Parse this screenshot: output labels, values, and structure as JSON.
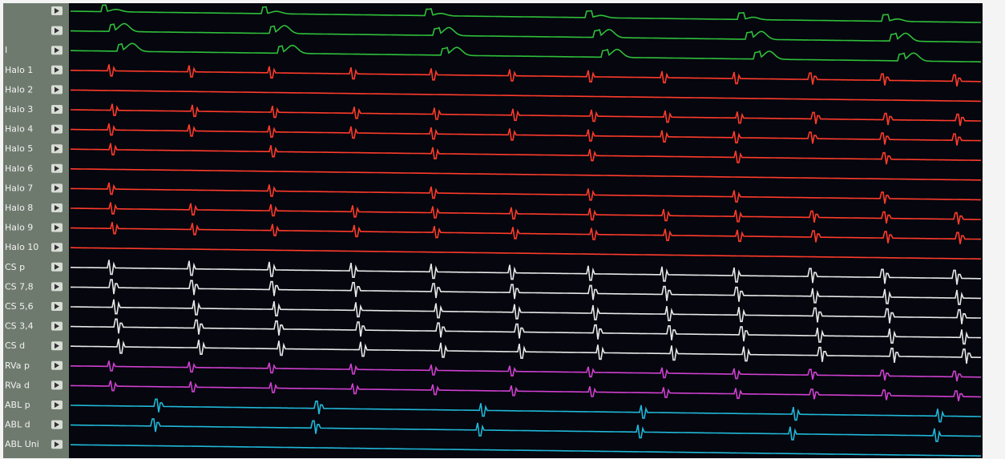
{
  "channels": [
    {
      "color": "#2fbf3a"
    },
    {
      "color": "#2fbf3a"
    },
    {
      "label": "I",
      "color": "#2fbf3a"
    },
    {
      "label": "Halo 1",
      "color": "#ff3b2a"
    },
    {
      "label": "Halo 2",
      "color": "#ff3b2a"
    },
    {
      "label": "Halo 3",
      "color": "#ff3b2a"
    },
    {
      "label": "Halo 4",
      "color": "#ff3b2a"
    },
    {
      "label": "Halo 5",
      "color": "#ff3b2a"
    },
    {
      "label": "Halo 6",
      "color": "#ff3b2a"
    },
    {
      "label": "Halo 7",
      "color": "#ff3b2a"
    },
    {
      "label": "Halo 8",
      "color": "#ff3b2a"
    },
    {
      "label": "Halo 9",
      "color": "#ff3b2a"
    },
    {
      "label": "Halo 10",
      "color": "#ff3b2a"
    },
    {
      "label": "CS p",
      "color": "#e8e8e8"
    },
    {
      "label": "CS 7,8",
      "color": "#e8e8e8"
    },
    {
      "label": "CS 5,6",
      "color": "#e8e8e8"
    },
    {
      "label": "CS 3,4",
      "color": "#e8e8e8"
    },
    {
      "label": "CS d",
      "color": "#e8e8e8"
    },
    {
      "label": "RVa p",
      "color": "#d040d0"
    },
    {
      "label": "RVa d",
      "color": "#d040d0"
    },
    {
      "label": "ABL p",
      "color": "#20b8d8"
    },
    {
      "label": "ABL d",
      "color": "#20b8d8"
    },
    {
      "label": "ABL Uni",
      "color": "#20b8d8"
    }
  ]
}
